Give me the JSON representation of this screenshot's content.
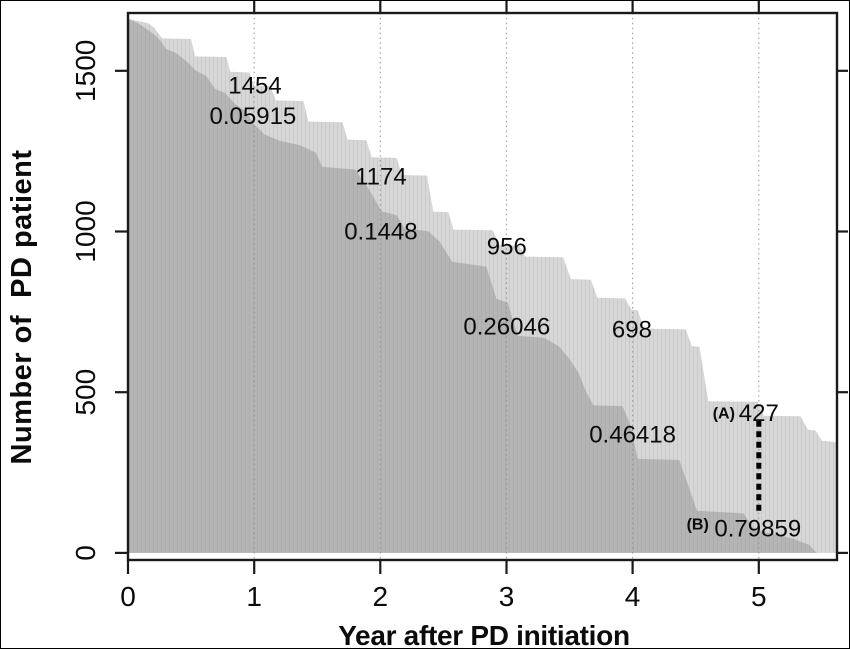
{
  "figure": {
    "background_color": "#ffffff",
    "frame_color": "#000000"
  },
  "chart_data": {
    "type": "area",
    "subtype": "stepped-survival-areas",
    "title": "",
    "xlabel": "Year after PD initiation",
    "ylabel": "Number of  PD patient",
    "xlim": [
      0,
      5.62
    ],
    "ylim": [
      -22,
      1680
    ],
    "x_ticks": [
      0,
      1,
      2,
      3,
      4,
      5
    ],
    "y_ticks": [
      0,
      500,
      1000,
      1500
    ],
    "grid_x": [
      1,
      2,
      3,
      4,
      5
    ],
    "grid_style": "dotted",
    "legend": "none",
    "baseline": 0,
    "axis_color": "#1a1a1a",
    "grid_color": "#909090",
    "series": [
      {
        "name": "patients-at-risk-upper",
        "color": "#d7d7d7",
        "points": [
          [
            0.0,
            1662
          ],
          [
            0.16,
            1648
          ],
          [
            0.21,
            1633
          ],
          [
            0.27,
            1601
          ],
          [
            0.5,
            1599
          ],
          [
            0.53,
            1545
          ],
          [
            0.78,
            1543
          ],
          [
            0.81,
            1497
          ],
          [
            0.96,
            1495
          ],
          [
            1.0,
            1454
          ],
          [
            1.13,
            1452
          ],
          [
            1.17,
            1408
          ],
          [
            1.39,
            1406
          ],
          [
            1.43,
            1342
          ],
          [
            1.7,
            1340
          ],
          [
            1.74,
            1286
          ],
          [
            1.89,
            1284
          ],
          [
            1.93,
            1231
          ],
          [
            2.13,
            1229
          ],
          [
            2.17,
            1176
          ],
          [
            2.37,
            1174
          ],
          [
            2.42,
            1062
          ],
          [
            2.54,
            1060
          ],
          [
            2.58,
            1006
          ],
          [
            2.89,
            1004
          ],
          [
            2.94,
            958
          ],
          [
            3.1,
            956
          ],
          [
            3.15,
            922
          ],
          [
            3.45,
            920
          ],
          [
            3.51,
            852
          ],
          [
            3.67,
            850
          ],
          [
            3.72,
            794
          ],
          [
            3.94,
            792
          ],
          [
            3.99,
            757
          ],
          [
            4.04,
            755
          ],
          [
            4.09,
            698
          ],
          [
            4.42,
            696
          ],
          [
            4.47,
            643
          ],
          [
            4.53,
            641
          ],
          [
            4.6,
            472
          ],
          [
            4.99,
            470
          ],
          [
            5.04,
            427
          ],
          [
            5.33,
            425
          ],
          [
            5.39,
            383
          ],
          [
            5.45,
            381
          ],
          [
            5.5,
            349
          ],
          [
            5.62,
            345
          ]
        ]
      },
      {
        "name": "patients-event-free-lower",
        "color": "#b5b5b5",
        "points": [
          [
            0.0,
            1662
          ],
          [
            0.08,
            1648
          ],
          [
            0.15,
            1630
          ],
          [
            0.22,
            1609
          ],
          [
            0.26,
            1593
          ],
          [
            0.3,
            1569
          ],
          [
            0.38,
            1556
          ],
          [
            0.46,
            1531
          ],
          [
            0.54,
            1500
          ],
          [
            0.62,
            1484
          ],
          [
            0.69,
            1444
          ],
          [
            0.77,
            1431
          ],
          [
            0.85,
            1397
          ],
          [
            0.93,
            1375
          ],
          [
            1.0,
            1334
          ],
          [
            1.08,
            1303
          ],
          [
            1.2,
            1283
          ],
          [
            1.36,
            1269
          ],
          [
            1.49,
            1245
          ],
          [
            1.54,
            1201
          ],
          [
            1.8,
            1193
          ],
          [
            1.91,
            1131
          ],
          [
            2.01,
            1063
          ],
          [
            2.13,
            1051
          ],
          [
            2.19,
            1011
          ],
          [
            2.38,
            1001
          ],
          [
            2.47,
            969
          ],
          [
            2.57,
            906
          ],
          [
            2.84,
            891
          ],
          [
            2.92,
            791
          ],
          [
            3.01,
            779
          ],
          [
            3.09,
            676
          ],
          [
            3.3,
            669
          ],
          [
            3.42,
            641
          ],
          [
            3.5,
            603
          ],
          [
            3.57,
            561
          ],
          [
            3.63,
            503
          ],
          [
            3.69,
            459
          ],
          [
            3.92,
            457
          ],
          [
            3.98,
            401
          ],
          [
            4.04,
            293
          ],
          [
            4.37,
            289
          ],
          [
            4.44,
            211
          ],
          [
            4.51,
            131
          ],
          [
            4.88,
            123
          ],
          [
            4.95,
            81
          ],
          [
            5.03,
            65
          ],
          [
            5.15,
            57
          ],
          [
            5.28,
            43
          ],
          [
            5.4,
            25
          ],
          [
            5.46,
            0
          ]
        ]
      }
    ],
    "annotations": [
      {
        "text": "1454",
        "x": 1.007,
        "y": 1456,
        "style": "annot"
      },
      {
        "text": "0.05915",
        "x": 0.99,
        "y": 1360,
        "style": "annot"
      },
      {
        "text": "1174",
        "x": 2.005,
        "y": 1173,
        "style": "annot"
      },
      {
        "text": "0.1448",
        "x": 2.005,
        "y": 1002,
        "style": "annot"
      },
      {
        "text": "956",
        "x": 3.003,
        "y": 955,
        "style": "annot"
      },
      {
        "text": "0.26046",
        "x": 3.003,
        "y": 706,
        "style": "annot"
      },
      {
        "text": "698",
        "x": 3.994,
        "y": 697,
        "style": "annot"
      },
      {
        "text": "0.46418",
        "x": 4.0,
        "y": 370,
        "style": "annot"
      },
      {
        "text": "(A)",
        "x": 4.723,
        "y": 436,
        "style": "annot-b"
      },
      {
        "text": "427",
        "x": 5.0,
        "y": 436,
        "style": "annot"
      },
      {
        "text": "(B)",
        "x": 4.516,
        "y": 90,
        "style": "annot-b"
      },
      {
        "text": "0.79859",
        "x": 4.992,
        "y": 78,
        "style": "annot"
      }
    ],
    "marker_line": {
      "x": 5.0,
      "y_top": 411,
      "y_bottom": 124,
      "color": "#000000",
      "style": "dotted"
    },
    "at_risk_table": [
      {
        "year": 1,
        "n_at_risk": 1454,
        "cumulative_value": 0.05915
      },
      {
        "year": 2,
        "n_at_risk": 1174,
        "cumulative_value": 0.1448
      },
      {
        "year": 3,
        "n_at_risk": 956,
        "cumulative_value": 0.26046
      },
      {
        "year": 4,
        "n_at_risk": 698,
        "cumulative_value": 0.46418
      },
      {
        "year": 5,
        "n_at_risk": 427,
        "cumulative_value": 0.79859,
        "count_label_prefix": "(A)",
        "value_label_prefix": "(B)"
      }
    ]
  }
}
